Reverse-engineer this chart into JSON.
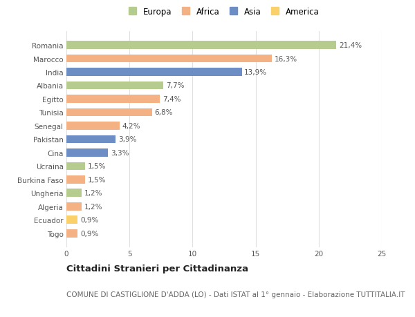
{
  "countries": [
    "Romania",
    "Marocco",
    "India",
    "Albania",
    "Egitto",
    "Tunisia",
    "Senegal",
    "Pakistan",
    "Cina",
    "Ucraina",
    "Burkina Faso",
    "Ungheria",
    "Algeria",
    "Ecuador",
    "Togo"
  ],
  "values": [
    21.4,
    16.3,
    13.9,
    7.7,
    7.4,
    6.8,
    4.2,
    3.9,
    3.3,
    1.5,
    1.5,
    1.2,
    1.2,
    0.9,
    0.9
  ],
  "labels": [
    "21,4%",
    "16,3%",
    "13,9%",
    "7,7%",
    "7,4%",
    "6,8%",
    "4,2%",
    "3,9%",
    "3,3%",
    "1,5%",
    "1,5%",
    "1,2%",
    "1,2%",
    "0,9%",
    "0,9%"
  ],
  "colors": [
    "#b5cc8e",
    "#f4b183",
    "#6d8ec4",
    "#b5cc8e",
    "#f4b183",
    "#f4b183",
    "#f4b183",
    "#6d8ec4",
    "#6d8ec4",
    "#b5cc8e",
    "#f4b183",
    "#b5cc8e",
    "#f4b183",
    "#f9d06a",
    "#f4b183"
  ],
  "legend_labels": [
    "Europa",
    "Africa",
    "Asia",
    "America"
  ],
  "legend_colors": [
    "#b5cc8e",
    "#f4b183",
    "#6d8ec4",
    "#f9d06a"
  ],
  "title": "Cittadini Stranieri per Cittadinanza",
  "subtitle": "COMUNE DI CASTIGLIONE D'ADDA (LO) - Dati ISTAT al 1° gennaio - Elaborazione TUTTITALIA.IT",
  "xlim": [
    0,
    25
  ],
  "xticks": [
    0,
    5,
    10,
    15,
    20,
    25
  ],
  "bg_color": "#ffffff",
  "grid_color": "#e0e0e0",
  "bar_height": 0.6,
  "title_fontsize": 9.5,
  "subtitle_fontsize": 7.5,
  "label_fontsize": 7.5,
  "tick_fontsize": 7.5,
  "legend_fontsize": 8.5
}
